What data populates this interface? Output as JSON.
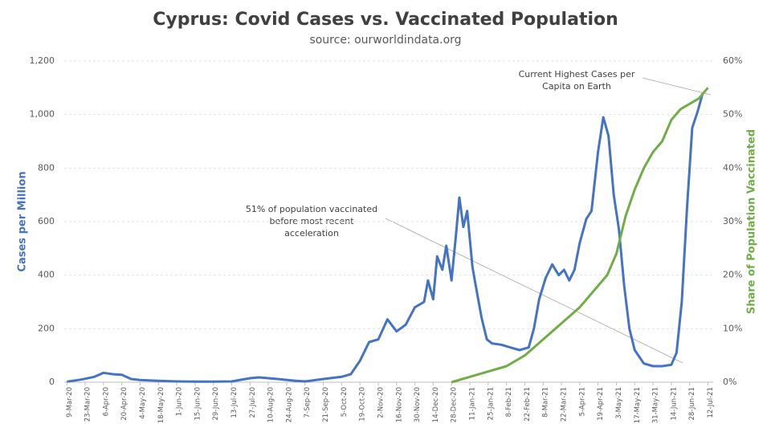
{
  "chart_data": {
    "type": "line",
    "title": "Cyprus: Covid Cases vs. Vaccinated Population",
    "subtitle": "source: ourworldindata.org",
    "y_label": "Cases per Million",
    "y2_label": "Share of Population Vaccinated",
    "annotations": [
      "Current Highest Cases per",
      "Capita on Earth",
      "51% of population vaccinated",
      "before most recent",
      "acceleration"
    ],
    "xlim": [
      "2020-03-07",
      "2021-07-16"
    ],
    "xticks": [
      {
        "value": "2020-03-09",
        "label": "9-Mar-20"
      },
      {
        "value": "2020-03-23",
        "label": "23-Mar-20"
      },
      {
        "value": "2020-04-06",
        "label": "6-Apr-20"
      },
      {
        "value": "2020-04-20",
        "label": "20-Apr-20"
      },
      {
        "value": "2020-05-04",
        "label": "4-May-20"
      },
      {
        "value": "2020-05-18",
        "label": "18-May-20"
      },
      {
        "value": "2020-06-01",
        "label": "1-Jun-20"
      },
      {
        "value": "2020-06-15",
        "label": "15-Jun-20"
      },
      {
        "value": "2020-06-29",
        "label": "29-Jun-20"
      },
      {
        "value": "2020-07-13",
        "label": "13-Jul-20"
      },
      {
        "value": "2020-07-27",
        "label": "27-Jul-20"
      },
      {
        "value": "2020-08-10",
        "label": "10-Aug-20"
      },
      {
        "value": "2020-08-24",
        "label": "24-Aug-20"
      },
      {
        "value": "2020-09-07",
        "label": "7-Sep-20"
      },
      {
        "value": "2020-09-21",
        "label": "21-Sep-20"
      },
      {
        "value": "2020-10-05",
        "label": "5-Oct-20"
      },
      {
        "value": "2020-10-19",
        "label": "19-Oct-20"
      },
      {
        "value": "2020-11-02",
        "label": "2-Nov-20"
      },
      {
        "value": "2020-11-16",
        "label": "16-Nov-20"
      },
      {
        "value": "2020-11-30",
        "label": "30-Nov-20"
      },
      {
        "value": "2020-12-14",
        "label": "14-Dec-20"
      },
      {
        "value": "2020-12-28",
        "label": "28-Dec-20"
      },
      {
        "value": "2021-01-11",
        "label": "11-Jan-21"
      },
      {
        "value": "2021-01-25",
        "label": "25-Jan-21"
      },
      {
        "value": "2021-02-08",
        "label": "8-Feb-21"
      },
      {
        "value": "2021-02-22",
        "label": "22-Feb-21"
      },
      {
        "value": "2021-03-08",
        "label": "8-Mar-21"
      },
      {
        "value": "2021-03-22",
        "label": "22-Mar-21"
      },
      {
        "value": "2021-04-05",
        "label": "5-Apr-21"
      },
      {
        "value": "2021-04-19",
        "label": "19-Apr-21"
      },
      {
        "value": "2021-05-03",
        "label": "3-May-21"
      },
      {
        "value": "2021-05-17",
        "label": "17-May-21"
      },
      {
        "value": "2021-05-31",
        "label": "31-May-21"
      },
      {
        "value": "2021-06-14",
        "label": "14-Jun-21"
      },
      {
        "value": "2021-06-28",
        "label": "28-Jun-21"
      },
      {
        "value": "2021-07-12",
        "label": "12-Jul-21"
      }
    ],
    "ylim": [
      0,
      1200
    ],
    "yticks": [
      0,
      200,
      400,
      600,
      800,
      {
        "value": 1000,
        "label": "1,000"
      },
      {
        "value": 1200,
        "label": "1,200"
      }
    ],
    "y2lim": [
      0,
      60
    ],
    "y2ticks": [
      {
        "value": 0,
        "label": "0%"
      },
      {
        "value": 10,
        "label": "10%"
      },
      {
        "value": 20,
        "label": "20%"
      },
      {
        "value": 30,
        "label": "30%"
      },
      {
        "value": 40,
        "label": "40%"
      },
      {
        "value": 50,
        "label": "50%"
      },
      {
        "value": 60,
        "label": "60%"
      }
    ],
    "grid": true,
    "series": [
      {
        "name": "Cases per Million",
        "color": "#4472c4",
        "x": [
          "2020-03-09",
          "2020-03-20",
          "2020-03-30",
          "2020-04-06",
          "2020-04-13",
          "2020-04-20",
          "2020-04-27",
          "2020-05-04",
          "2020-05-18",
          "2020-06-01",
          "2020-06-15",
          "2020-06-29",
          "2020-07-13",
          "2020-07-27",
          "2020-08-03",
          "2020-08-17",
          "2020-08-31",
          "2020-09-07",
          "2020-09-21",
          "2020-10-05",
          "2020-10-12",
          "2020-10-19",
          "2020-10-26",
          "2020-11-02",
          "2020-11-09",
          "2020-11-16",
          "2020-11-23",
          "2020-11-30",
          "2020-12-07",
          "2020-12-10",
          "2020-12-14",
          "2020-12-17",
          "2020-12-21",
          "2020-12-24",
          "2020-12-28",
          "2020-12-31",
          "2021-01-03",
          "2021-01-06",
          "2021-01-09",
          "2021-01-13",
          "2021-01-17",
          "2021-01-20",
          "2021-01-24",
          "2021-01-28",
          "2021-02-04",
          "2021-02-11",
          "2021-02-18",
          "2021-02-25",
          "2021-03-01",
          "2021-03-05",
          "2021-03-10",
          "2021-03-15",
          "2021-03-20",
          "2021-03-24",
          "2021-03-28",
          "2021-04-01",
          "2021-04-05",
          "2021-04-10",
          "2021-04-14",
          "2021-04-19",
          "2021-04-23",
          "2021-04-27",
          "2021-05-01",
          "2021-05-05",
          "2021-05-09",
          "2021-05-13",
          "2021-05-17",
          "2021-05-24",
          "2021-05-31",
          "2021-06-07",
          "2021-06-14",
          "2021-06-18",
          "2021-06-22",
          "2021-06-26",
          "2021-06-30",
          "2021-07-04",
          "2021-07-08"
        ],
        "values": [
          2,
          10,
          20,
          35,
          30,
          28,
          12,
          8,
          5,
          3,
          2,
          2,
          3,
          15,
          18,
          12,
          5,
          3,
          12,
          20,
          30,
          80,
          150,
          160,
          235,
          190,
          215,
          280,
          300,
          380,
          310,
          470,
          420,
          510,
          380,
          530,
          690,
          580,
          640,
          430,
          320,
          240,
          160,
          145,
          140,
          130,
          120,
          130,
          200,
          310,
          390,
          440,
          400,
          420,
          380,
          420,
          520,
          610,
          640,
          860,
          990,
          920,
          700,
          570,
          360,
          200,
          120,
          70,
          60,
          60,
          65,
          110,
          300,
          650,
          950,
          1010,
          1080
        ]
      },
      {
        "name": "Share of Population Vaccinated",
        "color": "#70ad47",
        "axis": "y2",
        "x": [
          "2020-12-28",
          "2021-01-11",
          "2021-01-25",
          "2021-02-08",
          "2021-02-22",
          "2021-03-08",
          "2021-03-22",
          "2021-04-05",
          "2021-04-19",
          "2021-04-26",
          "2021-05-03",
          "2021-05-10",
          "2021-05-17",
          "2021-05-24",
          "2021-05-31",
          "2021-06-07",
          "2021-06-14",
          "2021-06-21",
          "2021-06-28",
          "2021-07-05",
          "2021-07-12"
        ],
        "values": [
          0,
          1,
          2,
          3,
          5,
          8,
          11,
          14,
          18,
          20,
          24,
          31,
          36,
          40,
          43,
          45,
          49,
          51,
          52,
          53,
          55
        ]
      }
    ]
  }
}
